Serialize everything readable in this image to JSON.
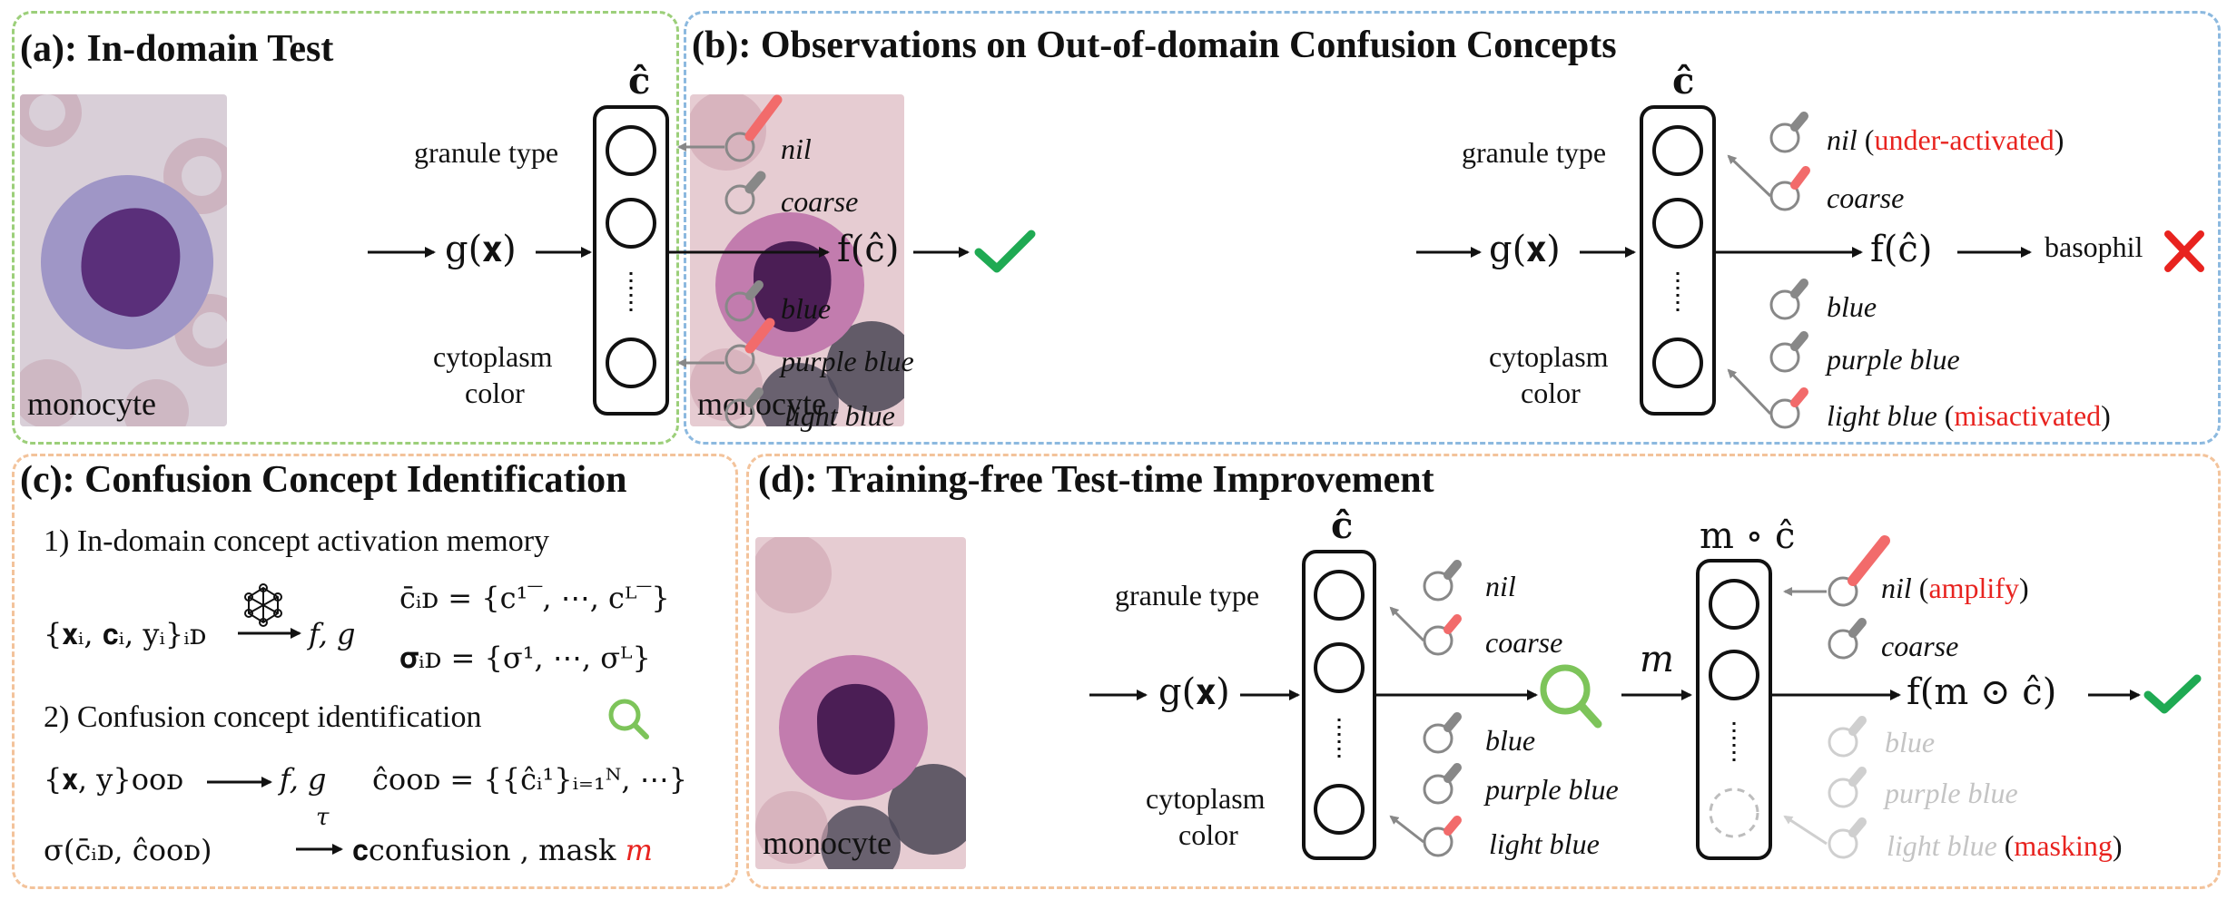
{
  "colors": {
    "panel_a": "#9ccf7a",
    "panel_b": "#8cb9df",
    "panel_cd": "#f3c39b",
    "check": "#1faa53",
    "cross": "#e8231f",
    "activation": "#f26b6b",
    "lens": "#7dc45a"
  },
  "panel_a": {
    "title": "(a): In-domain Test",
    "cell_label": "monocyte",
    "group_top": "granule type",
    "group_bottom_1": "cytoplasm",
    "group_bottom_2": "color",
    "chat": "ĉ",
    "g": "g(𝐱)",
    "f": "f(ĉ)",
    "concepts": [
      "nil",
      "coarse",
      "blue",
      "purple blue",
      "light blue"
    ]
  },
  "panel_b": {
    "title": "(b): Observations on Out-of-domain Confusion Concepts",
    "cell_label": "monocyte",
    "group_top": "granule type",
    "group_bottom_1": "cytoplasm",
    "group_bottom_2": "color",
    "chat": "ĉ",
    "g": "g(𝐱)",
    "f": "f(ĉ)",
    "prediction": "basophil",
    "concepts": [
      "nil",
      "coarse",
      "blue",
      "purple blue",
      "light blue"
    ],
    "nil_note": "under-activated",
    "light_blue_note": "misactivated"
  },
  "panel_c": {
    "title": "(c): Confusion Concept Identification",
    "step1": "1) In-domain concept activation memory",
    "step2": "2) Confusion concept identification",
    "eq_id_data": "{𝐱ᵢ, 𝐜ᵢ, yᵢ}ᵢᴅ",
    "eq_fg": "f, g",
    "eq_cbar": "c̄ᵢᴅ = {c¹‾, ⋯, cᴸ‾}",
    "eq_sigma": "𝛔ᵢᴅ = {σ¹, ⋯, σᴸ}",
    "eq_ood_data": "{𝐱, y}ᴏᴏᴅ",
    "eq_fg2": "f, g",
    "eq_chat_ood": "ĉᴏᴏᴅ = {{ĉᵢ¹}ᵢ₌₁ᴺ, ⋯}",
    "eq_sigma_fn": "σ(c̄ᵢᴅ, ĉᴏᴏᴅ)",
    "tau": "τ",
    "eq_conf": "𝐜confusion , mask",
    "eq_mask": "m"
  },
  "panel_d": {
    "title": "(d): Training-free Test-time Improvement",
    "cell_label": "monocyte",
    "group_top": "granule type",
    "group_bottom_1": "cytoplasm",
    "group_bottom_2": "color",
    "chat": "ĉ",
    "g": "g(𝐱)",
    "m": "m",
    "m_chat": "m ∘ ĉ",
    "f": "f(m ⊙ ĉ)",
    "concepts_left": [
      "nil",
      "coarse",
      "blue",
      "purple blue",
      "light blue"
    ],
    "concepts_right": [
      "nil",
      "coarse",
      "blue",
      "purple blue",
      "light blue"
    ],
    "amplify": "amplify",
    "masking": "masking"
  }
}
